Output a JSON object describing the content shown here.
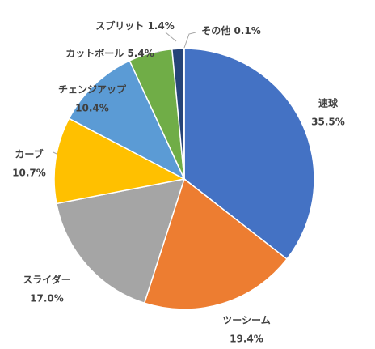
{
  "chart_data": {
    "type": "pie",
    "start_angle_deg": 0,
    "direction": "clockwise",
    "slices": [
      {
        "label": "速球",
        "value": 35.5,
        "value_text": "35.5%",
        "color": "#4472C4"
      },
      {
        "label": "ツーシーム",
        "value": 19.4,
        "value_text": "19.4%",
        "color": "#ED7D31"
      },
      {
        "label": "スライダー",
        "value": 17.0,
        "value_text": "17.0%",
        "color": "#A5A5A5"
      },
      {
        "label": "カーブ",
        "value": 10.7,
        "value_text": "10.7%",
        "color": "#FFC000"
      },
      {
        "label": "チェンジアップ",
        "value": 10.4,
        "value_text": "10.4%",
        "color": "#5B9BD5"
      },
      {
        "label": "カットボール",
        "value": 5.4,
        "value_text": "5.4%",
        "color": "#70AD47"
      },
      {
        "label": "スプリット",
        "value": 1.4,
        "value_text": "1.4%",
        "color": "#264478"
      },
      {
        "label": "その他",
        "value": 0.1,
        "value_text": "0.1%",
        "color": "#9E480E"
      }
    ]
  }
}
